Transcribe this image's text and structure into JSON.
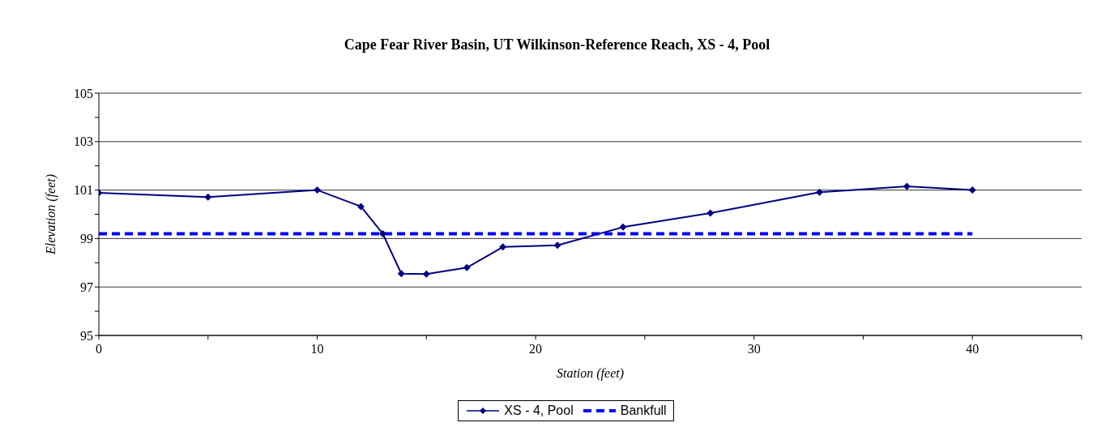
{
  "chart_data": {
    "type": "line",
    "title": "Cape Fear River Basin, UT Wilkinson-Reference Reach, XS - 4, Pool",
    "xlabel": "Station (feet)",
    "ylabel": "Elevation (feet)",
    "series": [
      {
        "name": "XS - 4, Pool",
        "color": "#000080",
        "marker": "diamond",
        "line_style": "solid",
        "x": [
          0,
          5,
          10,
          12,
          13,
          13.85,
          15,
          16.85,
          18.5,
          21,
          24,
          28,
          33,
          37,
          40
        ],
        "values": [
          100.89,
          100.71,
          101.0,
          100.32,
          99.2,
          97.55,
          97.53,
          97.8,
          98.65,
          98.72,
          99.47,
          100.05,
          100.91,
          101.15,
          101.0
        ]
      },
      {
        "name": "Bankfull",
        "color": "#0000ff",
        "marker": "none",
        "line_style": "dashed",
        "x": [
          0,
          40
        ],
        "values": [
          99.2,
          99.2
        ]
      }
    ],
    "xlim": [
      0,
      45
    ],
    "xticks": [
      0,
      {
        "value": 5,
        "label": null
      },
      10,
      {
        "value": 15,
        "label": null
      },
      20,
      {
        "value": 25,
        "label": null
      },
      30,
      {
        "value": 35,
        "label": null
      },
      40,
      {
        "value": 45,
        "label": null
      }
    ],
    "ylim": [
      95,
      105
    ],
    "yticks": [
      95,
      {
        "value": 96,
        "label": null
      },
      97,
      {
        "value": 98,
        "label": null
      },
      99,
      {
        "value": 100,
        "label": null
      },
      101,
      {
        "value": 102,
        "label": null
      },
      103,
      {
        "value": 104,
        "label": null
      },
      105
    ],
    "grid": "y",
    "legend": "bottom"
  }
}
